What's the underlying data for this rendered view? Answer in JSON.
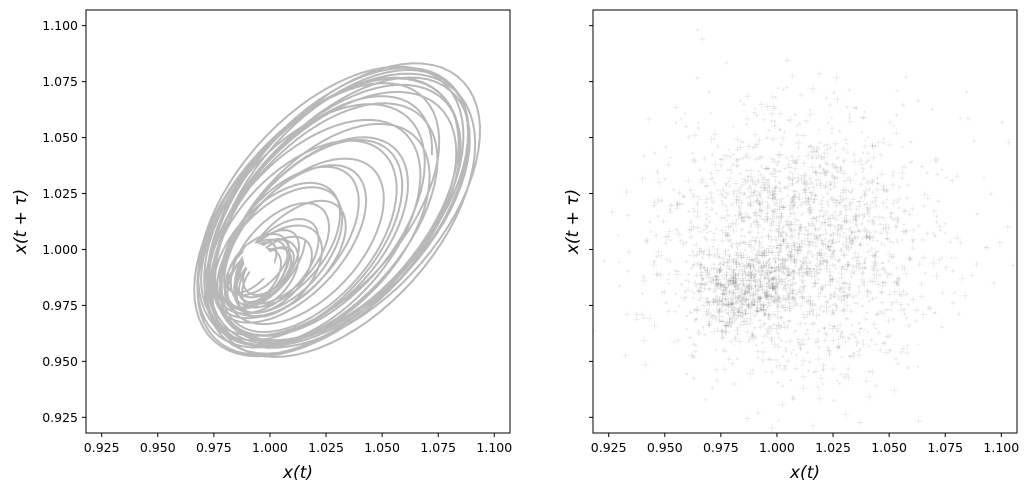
{
  "chart_data": [
    {
      "type": "scatter",
      "style": "attractor-trajectory",
      "xlabel": "x(t)",
      "ylabel": "x(t + τ)",
      "xlim": [
        0.918,
        1.107
      ],
      "ylim": [
        0.918,
        1.107
      ],
      "xticks": [
        0.925,
        0.95,
        0.975,
        1.0,
        1.025,
        1.05,
        1.075,
        1.1
      ],
      "yticks": [
        0.925,
        0.95,
        0.975,
        1.0,
        1.025,
        1.05,
        1.075,
        1.1
      ],
      "xtick_labels": [
        "0.925",
        "0.950",
        "0.975",
        "1.000",
        "1.025",
        "1.050",
        "1.075",
        "1.100"
      ],
      "ytick_labels": [
        "0.925",
        "0.950",
        "0.975",
        "1.000",
        "1.025",
        "1.050",
        "1.075",
        "1.100"
      ],
      "show_ytick_labels": true,
      "grid": false,
      "color": "#000000",
      "attractor": {
        "center": [
          0.985,
          0.983
        ],
        "x_range": [
          0.952,
          1.083
        ],
        "y_range": [
          0.952,
          1.082
        ],
        "hole_center": [
          0.995,
          0.995
        ]
      }
    },
    {
      "type": "scatter",
      "style": "noisy-density",
      "xlabel": "x(t)",
      "ylabel": "x(t + τ)",
      "xlim": [
        0.918,
        1.107
      ],
      "ylim": [
        0.918,
        1.107
      ],
      "xticks": [
        0.925,
        0.95,
        0.975,
        1.0,
        1.025,
        1.05,
        1.075,
        1.1
      ],
      "yticks": [
        0.925,
        0.95,
        0.975,
        1.0,
        1.025,
        1.05,
        1.075,
        1.1
      ],
      "xtick_labels": [
        "0.925",
        "0.950",
        "0.975",
        "1.000",
        "1.025",
        "1.050",
        "1.075",
        "1.100"
      ],
      "ytick_labels": [],
      "show_ytick_labels": false,
      "grid": false,
      "color": "#000000",
      "attractor": {
        "center": [
          0.985,
          0.983
        ],
        "x_range": [
          0.935,
          1.095
        ],
        "y_range": [
          0.935,
          1.095
        ],
        "densest_point": [
          0.985,
          0.981
        ]
      }
    }
  ]
}
